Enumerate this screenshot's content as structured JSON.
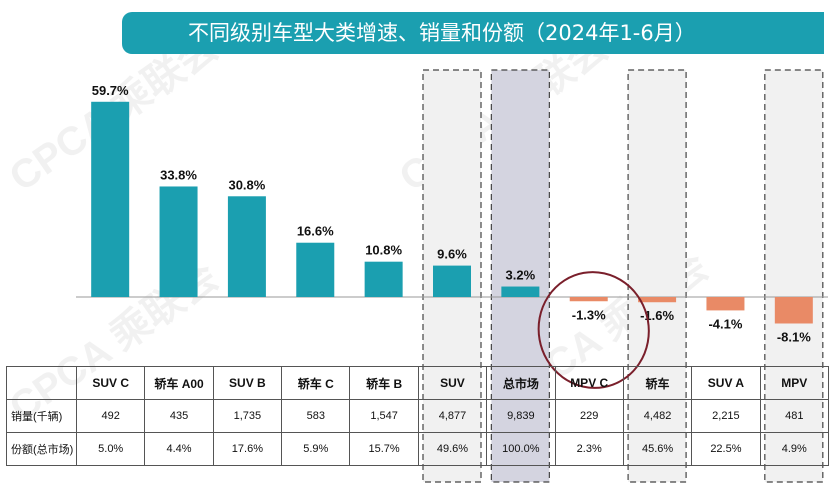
{
  "title": "不同级别车型大类增速、销量和份额（2024年1-6月）",
  "watermark": "CPCA 乘联会",
  "chart_data": {
    "type": "bar",
    "title": "不同级别车型大类增速、销量和份额（2024年1-6月）",
    "categories": [
      "SUV C",
      "轿车 A00",
      "SUV B",
      "轿车 C",
      "轿车 B",
      "SUV",
      "总市场",
      "MPV C",
      "轿车",
      "SUV A",
      "MPV"
    ],
    "series": [
      {
        "values": [
          59.7,
          33.8,
          30.8,
          16.6,
          10.8,
          9.6,
          3.2,
          -1.3,
          -1.6,
          -4.1,
          -8.1
        ]
      }
    ],
    "value_labels": [
      "59.7%",
      "33.8%",
      "30.8%",
      "16.6%",
      "10.8%",
      "9.6%",
      "3.2%",
      "-1.3%",
      "-1.6%",
      "-4.1%",
      "-8.1%"
    ],
    "ylim": [
      -12,
      62
    ],
    "grid": false,
    "highlighted": [
      "SUV",
      "总市场",
      "轿车",
      "MPV"
    ],
    "colors": {
      "positive": "#1b9fb0",
      "negative": "#e98a66",
      "total_shade": "#d4d4e0",
      "dash_shade": "#f1f1f1",
      "circle": "#7a1f2b"
    }
  },
  "table": {
    "rows": [
      {
        "label": "销量(千辆)",
        "values": [
          "492",
          "435",
          "1,735",
          "583",
          "1,547",
          "4,877",
          "9,839",
          "229",
          "4,482",
          "2,215",
          "481"
        ]
      },
      {
        "label": "份额(总市场)",
        "values": [
          "5.0%",
          "4.4%",
          "17.6%",
          "5.9%",
          "15.7%",
          "49.6%",
          "100.0%",
          "2.3%",
          "45.6%",
          "22.5%",
          "4.9%"
        ]
      }
    ]
  }
}
